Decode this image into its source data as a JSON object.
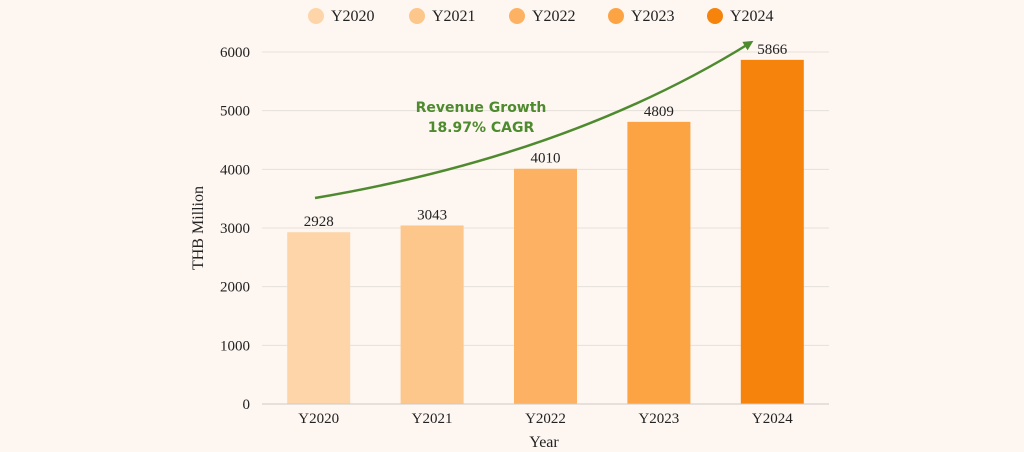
{
  "chart_data": {
    "type": "bar",
    "categories": [
      "Y2020",
      "Y2021",
      "Y2022",
      "Y2023",
      "Y2024"
    ],
    "values": [
      2928,
      3043,
      4010,
      4809,
      5866
    ],
    "colors": [
      "#fdd5a8",
      "#fdc68a",
      "#fdb263",
      "#fca444",
      "#f5830c"
    ],
    "xlabel": "Year",
    "ylabel": "THB Million",
    "ylim": [
      0,
      6000
    ],
    "yticks": [
      0,
      1000,
      2000,
      3000,
      4000,
      5000,
      6000
    ],
    "grid": true,
    "legend": {
      "position": "top",
      "entries": [
        "Y2020",
        "Y2021",
        "Y2022",
        "Y2023",
        "Y2024"
      ]
    },
    "annotation": {
      "line1": "Revenue Growth",
      "line2": "18.97% CAGR",
      "color": "#4e8a2e"
    }
  }
}
